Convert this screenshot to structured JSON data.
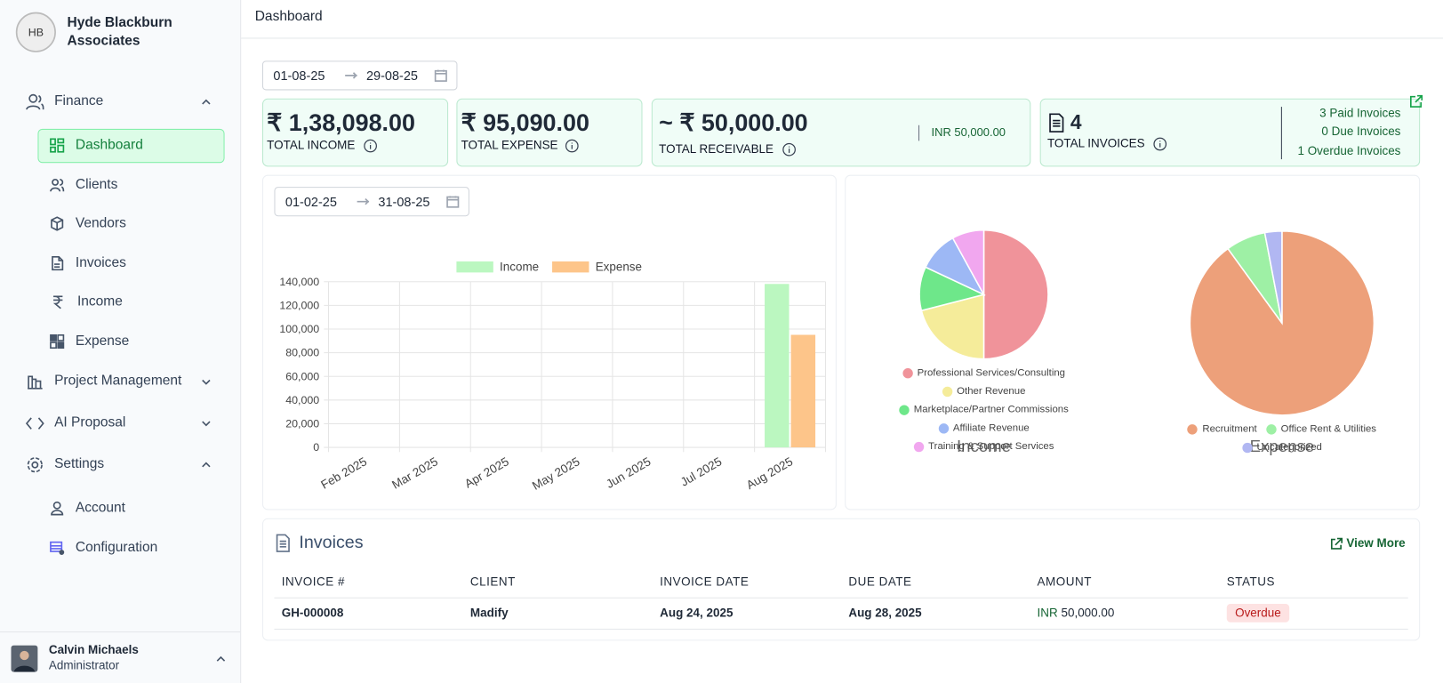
{
  "sidebar": {
    "brand": "Hyde Blackburn Associates",
    "nav": [
      {
        "label": "Finance",
        "children": [
          "Dashboard",
          "Clients",
          "Vendors",
          "Invoices",
          "Income",
          "Expense"
        ]
      },
      {
        "label": "Project Management"
      },
      {
        "label": "AI Proposal"
      },
      {
        "label": "Settings",
        "children": [
          "Account",
          "Configuration"
        ]
      }
    ],
    "user": {
      "name": "Calvin Michaels",
      "role": "Administrator"
    }
  },
  "header": {
    "title": "Dashboard"
  },
  "date_range": {
    "start": "01-08-25",
    "end": "29-08-25"
  },
  "cards": {
    "income": {
      "value": "₹ 1,38,098.00",
      "label": "TOTAL INCOME"
    },
    "expense": {
      "value": "₹ 95,090.00",
      "label": "TOTAL EXPENSE"
    },
    "receivable": {
      "value": "~ ₹ 50,000.00",
      "label": "TOTAL RECEIVABLE",
      "detail": "INR 50,000.00"
    },
    "invoices": {
      "value": "4",
      "label": "TOTAL INVOICES",
      "details": [
        "3 Paid Invoices",
        "0 Due Invoices",
        "1 Overdue Invoices"
      ]
    }
  },
  "chart_range": {
    "start": "01-02-25",
    "end": "31-08-25"
  },
  "chart_data": [
    {
      "type": "bar",
      "categories": [
        "Feb 2025",
        "Mar 2025",
        "Apr 2025",
        "May 2025",
        "Jun 2025",
        "Jul 2025",
        "Aug 2025"
      ],
      "series": [
        {
          "name": "Income",
          "color": "#bbf7c0",
          "values": [
            0,
            0,
            0,
            0,
            0,
            0,
            138098
          ]
        },
        {
          "name": "Expense",
          "color": "#fdc58a",
          "values": [
            0,
            0,
            0,
            0,
            0,
            0,
            95090
          ]
        }
      ],
      "ylim": [
        0,
        140000
      ],
      "yticks": [
        0,
        {
          "value": 20000,
          "label": "20,000"
        },
        {
          "value": 40000,
          "label": "40,000"
        },
        {
          "value": 60000,
          "label": "60,000"
        },
        {
          "value": 80000,
          "label": "80,000"
        },
        {
          "value": 100000,
          "label": "100,000"
        },
        {
          "value": 120000,
          "label": "120,000"
        },
        {
          "value": 140000,
          "label": "140,000"
        }
      ],
      "grid": true,
      "legend": "top"
    },
    {
      "type": "pie",
      "title": "Income",
      "categories": [
        "Professional Services/Consulting",
        "Other Revenue",
        "Marketplace/Partner Commissions",
        "Affiliate Revenue",
        "Training & Support Services"
      ],
      "values": [
        50,
        21,
        11,
        10,
        8
      ],
      "colors": [
        "#f0939a",
        "#f5ec9a",
        "#6ee78a",
        "#9db8f5",
        "#f1a7ef"
      ],
      "legend": "bottom"
    },
    {
      "type": "pie",
      "title": "Expense",
      "categories": [
        "Recruitment",
        "Office Rent & Utilities",
        "Uncategorized"
      ],
      "values": [
        90,
        7,
        3
      ],
      "colors": [
        "#eda07a",
        "#9ef0a5",
        "#b1b7f2"
      ],
      "legend": "bottom"
    }
  ],
  "invoices": {
    "title": "Invoices",
    "view_more": "View More",
    "columns": [
      "INVOICE #",
      "CLIENT",
      "INVOICE DATE",
      "DUE DATE",
      "AMOUNT",
      "STATUS"
    ],
    "rows": [
      [
        "GH-000008",
        "Madify",
        "Aug 24, 2025",
        "Aug 28, 2025",
        {
          "currency": "INR",
          "amount": "50,000.00"
        },
        "Overdue"
      ]
    ]
  }
}
